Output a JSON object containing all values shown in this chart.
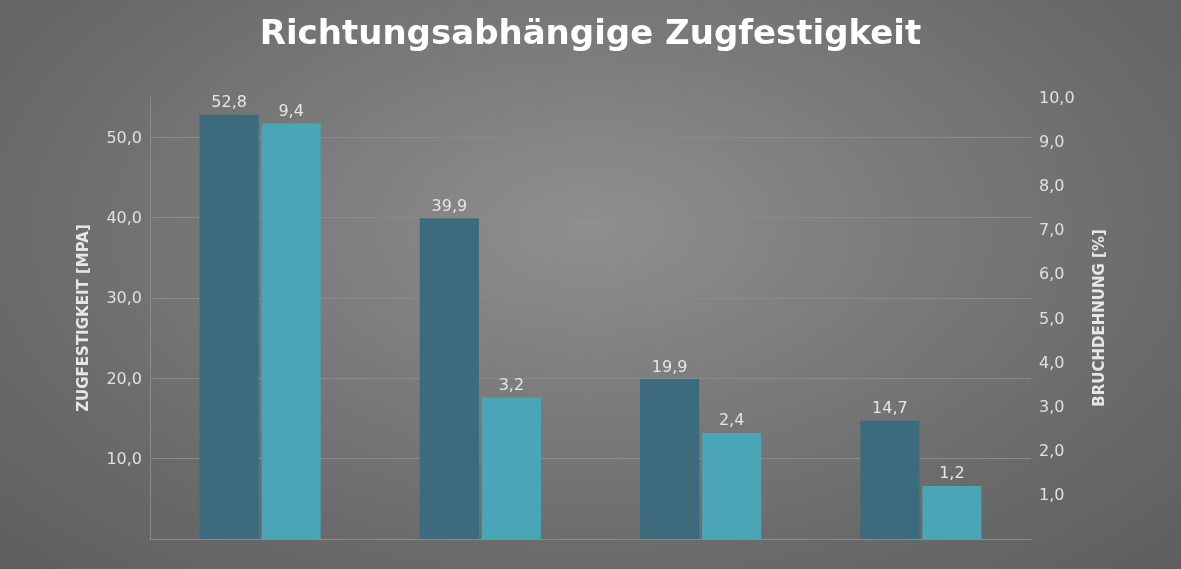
{
  "chart_data": {
    "type": "bar",
    "title": "Richtungsabhängige Zugfestigkeit",
    "ylabel": "ZUGFESTIGKEIT [MPA]",
    "y2label": "BRUCHDEHNUNG [%]",
    "categories": [
      null,
      null,
      null,
      null
    ],
    "series": [
      {
        "color": "#3b6b7c",
        "values": [
          52.8,
          39.9,
          19.9,
          14.7
        ],
        "value_labels": [
          "52,8",
          "39,9",
          "19,9",
          "14,7"
        ]
      },
      {
        "color": "#4aa6b6",
        "axis": "y2",
        "values": [
          9.4,
          3.2,
          2.4,
          1.2
        ],
        "value_labels": [
          "9,4",
          "3,2",
          "2,4",
          "1,2"
        ]
      }
    ],
    "ylim": [
      0,
      55
    ],
    "yticks": [
      {
        "value": 10,
        "label": "10,0"
      },
      {
        "value": 20,
        "label": "20,0"
      },
      {
        "value": 30,
        "label": "30,0"
      },
      {
        "value": 40,
        "label": "40,0"
      },
      {
        "value": 50,
        "label": "50,0"
      }
    ],
    "y2lim": [
      0,
      10
    ],
    "y2ticks": [
      {
        "value": 1,
        "label": "1,0"
      },
      {
        "value": 2,
        "label": "2,0"
      },
      {
        "value": 3,
        "label": "3,0"
      },
      {
        "value": 4,
        "label": "4,0"
      },
      {
        "value": 5,
        "label": "5,0"
      },
      {
        "value": 6,
        "label": "6,0"
      },
      {
        "value": 7,
        "label": "7,0"
      },
      {
        "value": 8,
        "label": "8,0"
      },
      {
        "value": 9,
        "label": "9,0"
      },
      {
        "value": 10,
        "label": "10,0"
      }
    ],
    "grid": "y"
  }
}
